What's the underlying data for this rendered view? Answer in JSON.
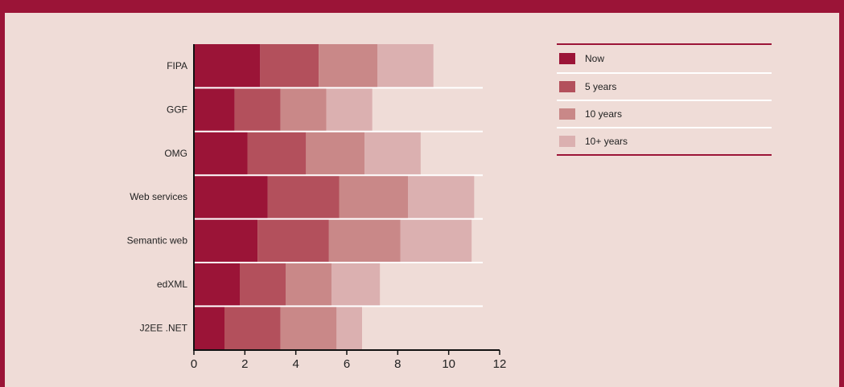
{
  "chart_data": {
    "type": "bar",
    "orientation": "horizontal",
    "stacked": true,
    "categories": [
      "FIPA",
      "GGF",
      "OMG",
      "Web services",
      "Semantic web",
      "edXML",
      "J2EE .NET"
    ],
    "series": [
      {
        "name": "Now",
        "color": "#9b1437",
        "values": [
          2.6,
          1.6,
          2.1,
          2.9,
          2.5,
          1.8,
          1.2
        ]
      },
      {
        "name": "5 years",
        "color": "#b3505c",
        "values": [
          2.3,
          1.8,
          2.3,
          2.8,
          2.8,
          1.8,
          2.2
        ]
      },
      {
        "name": "10 years",
        "color": "#c98888",
        "values": [
          2.3,
          1.8,
          2.3,
          2.7,
          2.8,
          1.8,
          2.2
        ]
      },
      {
        "name": "10+ years",
        "color": "#dbb0b0",
        "values": [
          2.2,
          1.8,
          2.2,
          2.6,
          2.8,
          1.9,
          1.0
        ]
      }
    ],
    "xlim": [
      0,
      12
    ],
    "x_ticks": [
      0,
      2,
      4,
      6,
      8,
      10,
      12
    ],
    "title": "",
    "xlabel": "",
    "ylabel": "",
    "legend_position": "right",
    "grid": false
  }
}
